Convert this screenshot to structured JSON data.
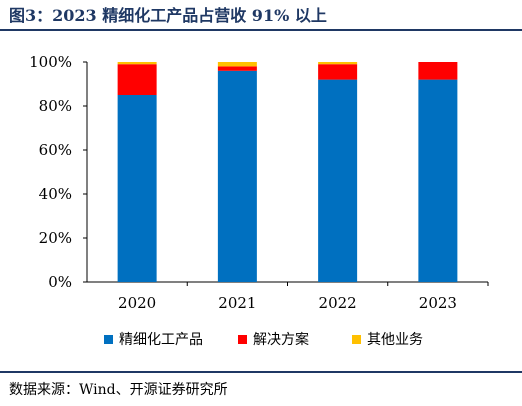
{
  "title": "图3：2023 精细化工产品占营收 91% 以上",
  "source": "数据来源：Wind、开源证券研究所",
  "colors": {
    "title": "#1f3864",
    "rule": "#1f3864"
  },
  "chart_data": {
    "type": "bar",
    "stacked": true,
    "categories": [
      "2020",
      "2021",
      "2022",
      "2023"
    ],
    "series": [
      {
        "name": "精细化工产品",
        "color": "#0070c0",
        "values": [
          85,
          96,
          92,
          92
        ]
      },
      {
        "name": "解决方案",
        "color": "#ff0000",
        "values": [
          14,
          2,
          7,
          8
        ]
      },
      {
        "name": "其他业务",
        "color": "#ffc000",
        "values": [
          1,
          2,
          1,
          0
        ]
      }
    ],
    "yticks": [
      "0%",
      "20%",
      "40%",
      "60%",
      "80%",
      "100%"
    ],
    "ytick_values": [
      0,
      20,
      40,
      60,
      80,
      100
    ],
    "ylim": [
      0,
      100
    ],
    "grid": false,
    "legend_position": "bottom"
  }
}
